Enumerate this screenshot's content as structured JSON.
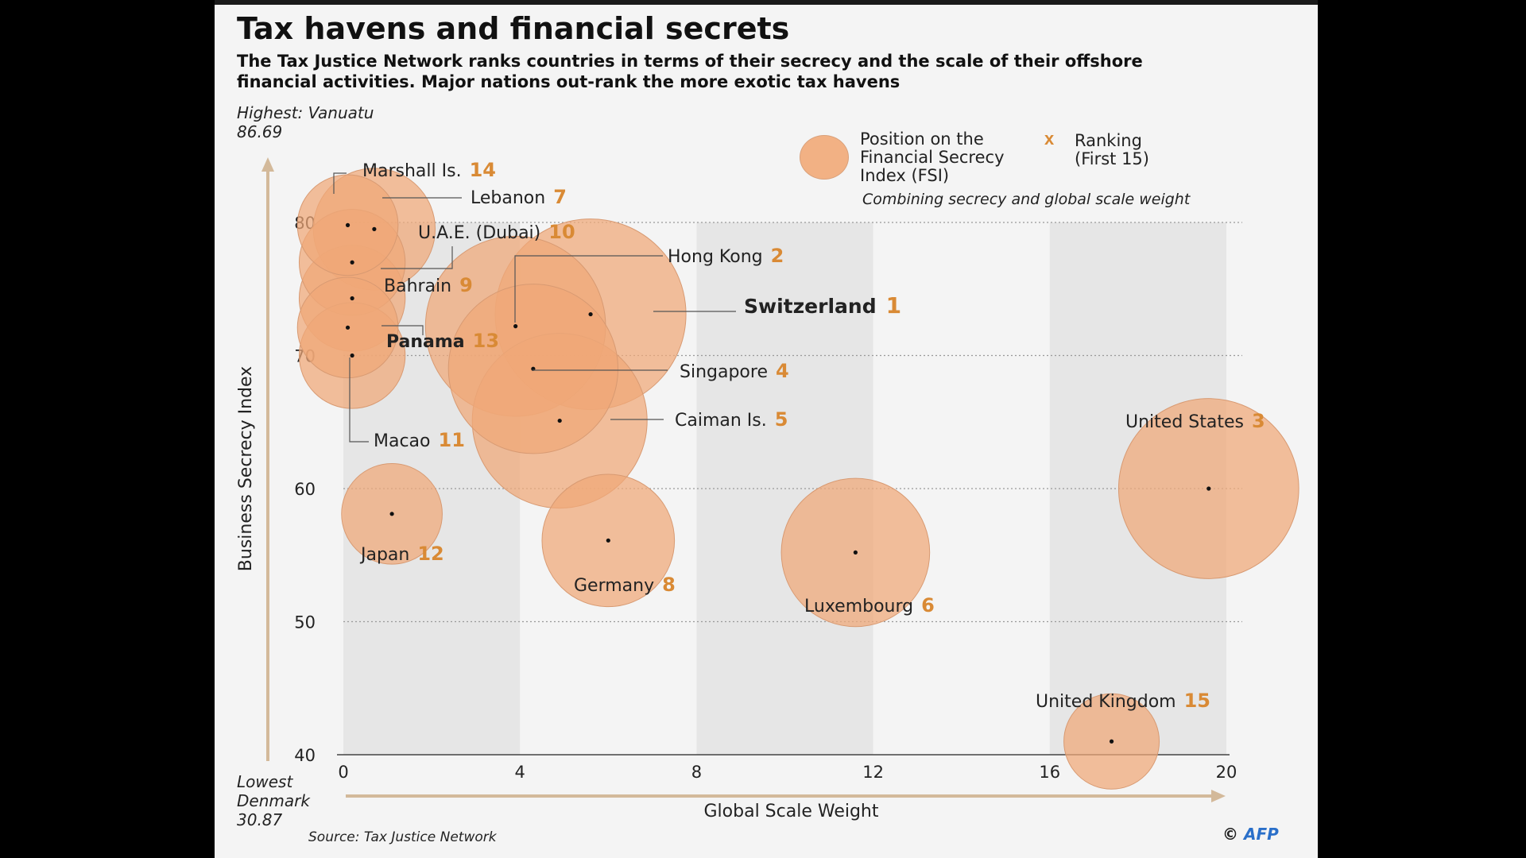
{
  "header": {
    "title": "Tax havens and financial secrets",
    "subtitle": "The Tax Justice Network ranks countries in terms of their secrecy and the scale of their offshore financial activities. Major nations out-rank the more exotic tax havens"
  },
  "extremes": {
    "highest_label": "Highest: Vanuatu",
    "highest_value": "86.69",
    "lowest_label": "Lowest",
    "lowest_name": "Denmark",
    "lowest_value": "30.87"
  },
  "legend": {
    "bubble_label": "Position on the Financial Secrecy Index (FSI)",
    "bubble_note": "Combining secrecy and global scale weight",
    "rank_marker": "x",
    "rank_label": "Ranking (First 15)"
  },
  "footer": {
    "source": "Source: Tax Justice Network",
    "copyright": "©",
    "brand": "AFP"
  },
  "colors": {
    "bubble_fill": "#f0a877",
    "bubble_stroke": "#d89a72",
    "rank_number": "#d98a35",
    "axis_arrow": "#d3b99a",
    "band": "#e6e6e6"
  },
  "chart_data": {
    "type": "scatter",
    "xlabel": "Global Scale Weight",
    "ylabel": "Business Secrecy Index",
    "xlim": [
      0,
      20
    ],
    "ylim": [
      40,
      80
    ],
    "x_ticks": [
      "0",
      "4",
      "8",
      "12",
      "16",
      "20"
    ],
    "y_ticks": [
      "40",
      "50",
      "60",
      "70",
      "80"
    ],
    "grid": "dotted horizontal lines, alternating vertical bands",
    "legend_position": "top-right",
    "points": [
      {
        "name": "Switzerland",
        "rank": 1,
        "x": 5.6,
        "y": 73.1,
        "r": 3.6,
        "bold": true
      },
      {
        "name": "Hong Kong",
        "rank": 2,
        "x": 3.9,
        "y": 72.2,
        "r": 3.4
      },
      {
        "name": "United States",
        "rank": 3,
        "x": 19.6,
        "y": 60.0,
        "r": 3.4
      },
      {
        "name": "Singapore",
        "rank": 4,
        "x": 4.3,
        "y": 69.0,
        "r": 3.2
      },
      {
        "name": "Caiman Is.",
        "rank": 5,
        "x": 4.9,
        "y": 65.1,
        "r": 3.3
      },
      {
        "name": "Luxembourg",
        "rank": 6,
        "x": 11.6,
        "y": 55.2,
        "r": 2.8
      },
      {
        "name": "Lebanon",
        "rank": 7,
        "x": 0.7,
        "y": 79.5,
        "r": 2.3
      },
      {
        "name": "Germany",
        "rank": 8,
        "x": 6.0,
        "y": 56.1,
        "r": 2.5
      },
      {
        "name": "Bahrain",
        "rank": 9,
        "x": 0.2,
        "y": 74.3,
        "r": 2.0
      },
      {
        "name": "U.A.E. (Dubai)",
        "rank": 10,
        "x": 0.2,
        "y": 77.0,
        "r": 2.0
      },
      {
        "name": "Macao",
        "rank": 11,
        "x": 0.2,
        "y": 70.0,
        "r": 2.0
      },
      {
        "name": "Japan",
        "rank": 12,
        "x": 1.1,
        "y": 58.1,
        "r": 1.9
      },
      {
        "name": "Panama",
        "rank": 13,
        "x": 0.1,
        "y": 72.1,
        "r": 1.9,
        "bold": true
      },
      {
        "name": "Marshall Is.",
        "rank": 14,
        "x": 0.1,
        "y": 79.8,
        "r": 1.9
      },
      {
        "name": "United Kingdom",
        "rank": 15,
        "x": 17.4,
        "y": 41.0,
        "r": 1.8
      }
    ]
  }
}
